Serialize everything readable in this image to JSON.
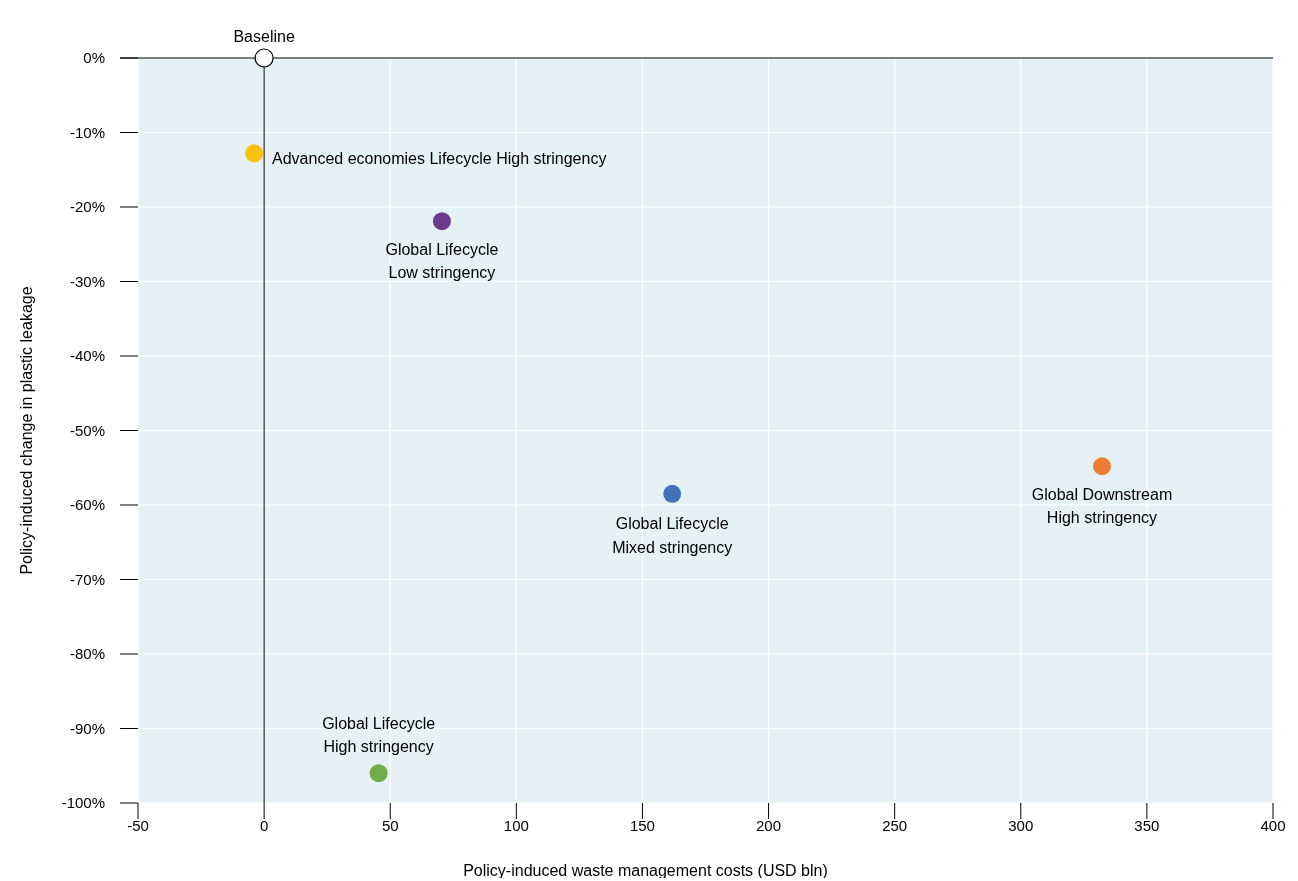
{
  "chart_data": {
    "type": "scatter",
    "xlabel": "Policy-induced waste management costs (USD bln)",
    "ylabel": "Policy-induced change in plastic leakage",
    "xlim": [
      -50,
      400
    ],
    "xticks": [
      -50,
      0,
      50,
      100,
      150,
      200,
      250,
      300,
      350,
      400
    ],
    "ylim": [
      -100,
      0
    ],
    "yticks": [
      {
        "value": 0,
        "label": "0%"
      },
      {
        "value": -10,
        "label": "-10%"
      },
      {
        "value": -20,
        "label": "-20%"
      },
      {
        "value": -30,
        "label": "-30%"
      },
      {
        "value": -40,
        "label": "-40%"
      },
      {
        "value": -50,
        "label": "-50%"
      },
      {
        "value": -60,
        "label": "-60%"
      },
      {
        "value": -70,
        "label": "-70%"
      },
      {
        "value": -80,
        "label": "-80%"
      },
      {
        "value": -90,
        "label": "-90%"
      },
      {
        "value": -100,
        "label": "-100%"
      }
    ],
    "grid": true,
    "marker": "circle",
    "ref_lines": [
      {
        "axis": "x",
        "value": 0,
        "color": "#000000"
      }
    ],
    "series": [
      {
        "name": "Baseline",
        "color": "#ffffff",
        "x": [
          0
        ],
        "values": [
          0
        ]
      },
      {
        "name": "Advanced economies Lifecycle High stringency",
        "color": "#fdc010",
        "x": [
          -4
        ],
        "values": [
          -12.8
        ]
      },
      {
        "name": "Global Lifecycle Low stringency",
        "color": "#6a3a8c",
        "x": [
          70.5
        ],
        "values": [
          -21.9
        ]
      },
      {
        "name": "Global Lifecycle Mixed stringency",
        "color": "#4472b8",
        "x": [
          161.8
        ],
        "values": [
          -58.5
        ]
      },
      {
        "name": "Global Downstream High stringency",
        "color": "#ed7d31",
        "x": [
          332.2
        ],
        "values": [
          -54.8
        ]
      },
      {
        "name": "Global Lifecycle High stringency",
        "color": "#70ad47",
        "x": [
          45.4
        ],
        "values": [
          -96
        ]
      }
    ]
  }
}
